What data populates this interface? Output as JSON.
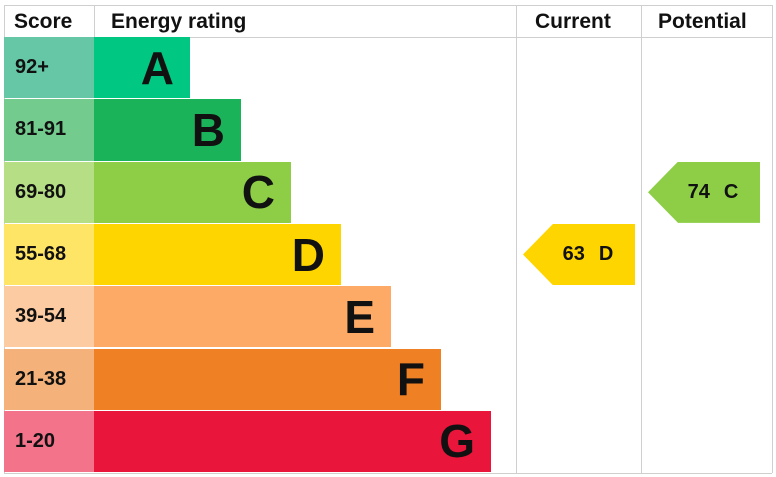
{
  "chart_data": {
    "type": "bar",
    "headers": {
      "score": "Score",
      "rating": "Energy rating",
      "current": "Current",
      "potential": "Potential"
    },
    "bands": [
      {
        "score": "92+",
        "letter": "A",
        "color": "#00c781",
        "score_color": "#66c7a6"
      },
      {
        "score": "81-91",
        "letter": "B",
        "color": "#1bb35a",
        "score_color": "#73cb8d"
      },
      {
        "score": "69-80",
        "letter": "C",
        "color": "#8dce46",
        "score_color": "#b6df85"
      },
      {
        "score": "55-68",
        "letter": "D",
        "color": "#ffd500",
        "score_color": "#ffe566"
      },
      {
        "score": "39-54",
        "letter": "E",
        "color": "#fcaa65",
        "score_color": "#fdcba1"
      },
      {
        "score": "21-38",
        "letter": "F",
        "color": "#ef8023",
        "score_color": "#f4b27a"
      },
      {
        "score": "1-20",
        "letter": "G",
        "color": "#e9153b",
        "score_color": "#f2738a"
      }
    ],
    "current": {
      "value": "63",
      "letter": "D",
      "color": "#ffd500"
    },
    "potential": {
      "value": "74",
      "letter": "C",
      "color": "#8dce46"
    }
  }
}
